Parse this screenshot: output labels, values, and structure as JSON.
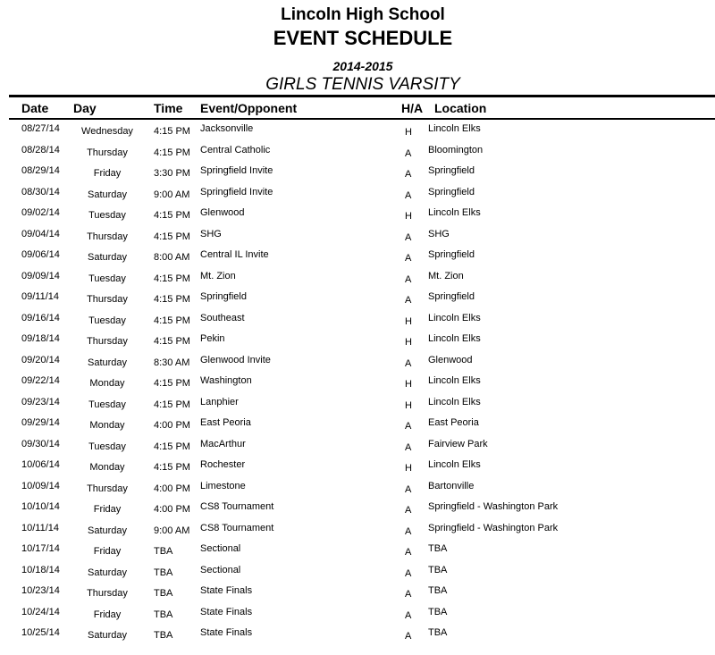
{
  "header": {
    "school": "Lincoln High School",
    "title": "EVENT SCHEDULE",
    "season": "2014-2015",
    "team": "GIRLS TENNIS VARSITY"
  },
  "columns": {
    "date": "Date",
    "day": "Day",
    "time": "Time",
    "event": "Event/Opponent",
    "ha": "H/A",
    "location": "Location"
  },
  "rows": [
    {
      "date": "08/27/14",
      "day": "Wednesday",
      "time": "4:15 PM",
      "event": "Jacksonville",
      "ha": "H",
      "location": "Lincoln Elks"
    },
    {
      "date": "08/28/14",
      "day": "Thursday",
      "time": "4:15 PM",
      "event": "Central Catholic",
      "ha": "A",
      "location": "Bloomington"
    },
    {
      "date": "08/29/14",
      "day": "Friday",
      "time": "3:30 PM",
      "event": "Springfield Invite",
      "ha": "A",
      "location": "Springfield"
    },
    {
      "date": "08/30/14",
      "day": "Saturday",
      "time": "9:00 AM",
      "event": "Springfield Invite",
      "ha": "A",
      "location": "Springfield"
    },
    {
      "date": "09/02/14",
      "day": "Tuesday",
      "time": "4:15 PM",
      "event": "Glenwood",
      "ha": "H",
      "location": "Lincoln Elks"
    },
    {
      "date": "09/04/14",
      "day": "Thursday",
      "time": "4:15 PM",
      "event": "SHG",
      "ha": "A",
      "location": "SHG"
    },
    {
      "date": "09/06/14",
      "day": "Saturday",
      "time": "8:00 AM",
      "event": "Central IL Invite",
      "ha": "A",
      "location": "Springfield"
    },
    {
      "date": "09/09/14",
      "day": "Tuesday",
      "time": "4:15 PM",
      "event": "Mt. Zion",
      "ha": "A",
      "location": "Mt. Zion"
    },
    {
      "date": "09/11/14",
      "day": "Thursday",
      "time": "4:15 PM",
      "event": "Springfield",
      "ha": "A",
      "location": "Springfield"
    },
    {
      "date": "09/16/14",
      "day": "Tuesday",
      "time": "4:15 PM",
      "event": "Southeast",
      "ha": "H",
      "location": "Lincoln Elks"
    },
    {
      "date": "09/18/14",
      "day": "Thursday",
      "time": "4:15 PM",
      "event": "Pekin",
      "ha": "H",
      "location": "Lincoln Elks"
    },
    {
      "date": "09/20/14",
      "day": "Saturday",
      "time": "8:30 AM",
      "event": "Glenwood Invite",
      "ha": "A",
      "location": "Glenwood"
    },
    {
      "date": "09/22/14",
      "day": "Monday",
      "time": "4:15 PM",
      "event": "Washington",
      "ha": "H",
      "location": "Lincoln Elks"
    },
    {
      "date": "09/23/14",
      "day": "Tuesday",
      "time": "4:15 PM",
      "event": "Lanphier",
      "ha": "H",
      "location": "Lincoln Elks"
    },
    {
      "date": "09/29/14",
      "day": "Monday",
      "time": "4:00 PM",
      "event": "East Peoria",
      "ha": "A",
      "location": "East Peoria"
    },
    {
      "date": "09/30/14",
      "day": "Tuesday",
      "time": "4:15 PM",
      "event": "MacArthur",
      "ha": "A",
      "location": "Fairview Park"
    },
    {
      "date": "10/06/14",
      "day": "Monday",
      "time": "4:15 PM",
      "event": "Rochester",
      "ha": "H",
      "location": "Lincoln Elks"
    },
    {
      "date": "10/09/14",
      "day": "Thursday",
      "time": "4:00 PM",
      "event": "Limestone",
      "ha": "A",
      "location": "Bartonville"
    },
    {
      "date": "10/10/14",
      "day": "Friday",
      "time": "4:00 PM",
      "event": "CS8 Tournament",
      "ha": "A",
      "location": "Springfield - Washington Park"
    },
    {
      "date": "10/11/14",
      "day": "Saturday",
      "time": "9:00 AM",
      "event": "CS8 Tournament",
      "ha": "A",
      "location": "Springfield - Washington Park"
    },
    {
      "date": "10/17/14",
      "day": "Friday",
      "time": "TBA",
      "event": "Sectional",
      "ha": "A",
      "location": "TBA"
    },
    {
      "date": "10/18/14",
      "day": "Saturday",
      "time": "TBA",
      "event": "Sectional",
      "ha": "A",
      "location": "TBA"
    },
    {
      "date": "10/23/14",
      "day": "Thursday",
      "time": "TBA",
      "event": "State Finals",
      "ha": "A",
      "location": "TBA"
    },
    {
      "date": "10/24/14",
      "day": "Friday",
      "time": "TBA",
      "event": "State Finals",
      "ha": "A",
      "location": "TBA"
    },
    {
      "date": "10/25/14",
      "day": "Saturday",
      "time": "TBA",
      "event": "State Finals",
      "ha": "A",
      "location": "TBA"
    }
  ]
}
